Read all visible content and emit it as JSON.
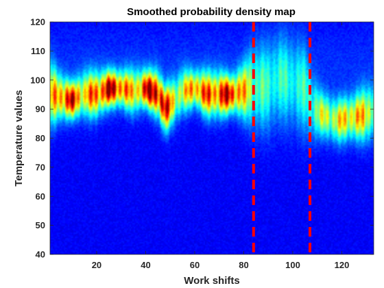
{
  "chart_data": {
    "type": "heatmap",
    "title": "Smoothed probability density map",
    "xlabel": "Work shifts",
    "ylabel": "Temperature values",
    "xlim": [
      1,
      133
    ],
    "ylim": [
      40,
      120
    ],
    "xticks": [
      20,
      40,
      60,
      80,
      100,
      120
    ],
    "yticks": [
      40,
      50,
      60,
      70,
      80,
      90,
      100,
      110,
      120
    ],
    "colormap": "jet",
    "grid": false,
    "vertical_markers": [
      {
        "x": 84,
        "color": "#ff0000",
        "style": "dashed"
      },
      {
        "x": 107,
        "color": "#ff0000",
        "style": "dashed"
      }
    ],
    "density_ridge": [
      {
        "x": 1,
        "center": 95,
        "width": 7,
        "peak": 0.55
      },
      {
        "x": 5,
        "center": 94,
        "width": 5,
        "peak": 0.75
      },
      {
        "x": 10,
        "center": 93,
        "width": 4,
        "peak": 0.85
      },
      {
        "x": 15,
        "center": 95,
        "width": 5,
        "peak": 0.6
      },
      {
        "x": 20,
        "center": 95,
        "width": 5,
        "peak": 0.75
      },
      {
        "x": 25,
        "center": 97,
        "width": 4,
        "peak": 0.92
      },
      {
        "x": 30,
        "center": 97,
        "width": 4,
        "peak": 0.8
      },
      {
        "x": 35,
        "center": 96,
        "width": 5,
        "peak": 0.55
      },
      {
        "x": 40,
        "center": 97,
        "width": 4,
        "peak": 0.85
      },
      {
        "x": 45,
        "center": 95,
        "width": 5,
        "peak": 1.0
      },
      {
        "x": 48,
        "center": 90,
        "width": 5,
        "peak": 0.85
      },
      {
        "x": 52,
        "center": 93,
        "width": 5,
        "peak": 0.55
      },
      {
        "x": 55,
        "center": 96,
        "width": 5,
        "peak": 0.5
      },
      {
        "x": 60,
        "center": 97,
        "width": 4,
        "peak": 0.72
      },
      {
        "x": 65,
        "center": 95,
        "width": 5,
        "peak": 0.72
      },
      {
        "x": 70,
        "center": 95,
        "width": 5,
        "peak": 0.8
      },
      {
        "x": 75,
        "center": 95,
        "width": 4,
        "peak": 0.88
      },
      {
        "x": 80,
        "center": 96,
        "width": 6,
        "peak": 0.6
      },
      {
        "x": 84,
        "center": 97,
        "width": 9,
        "peak": 0.38
      },
      {
        "x": 90,
        "center": 97,
        "width": 10,
        "peak": 0.3
      },
      {
        "x": 95,
        "center": 100,
        "width": 10,
        "peak": 0.3
      },
      {
        "x": 100,
        "center": 98,
        "width": 10,
        "peak": 0.28
      },
      {
        "x": 105,
        "center": 96,
        "width": 10,
        "peak": 0.3
      },
      {
        "x": 108,
        "center": 90,
        "width": 7,
        "peak": 0.38
      },
      {
        "x": 112,
        "center": 88,
        "width": 5,
        "peak": 0.5
      },
      {
        "x": 118,
        "center": 86,
        "width": 5,
        "peak": 0.55
      },
      {
        "x": 124,
        "center": 87,
        "width": 5,
        "peak": 0.65
      },
      {
        "x": 130,
        "center": 88,
        "width": 6,
        "peak": 0.6
      },
      {
        "x": 133,
        "center": 89,
        "width": 6,
        "peak": 0.5
      }
    ]
  }
}
